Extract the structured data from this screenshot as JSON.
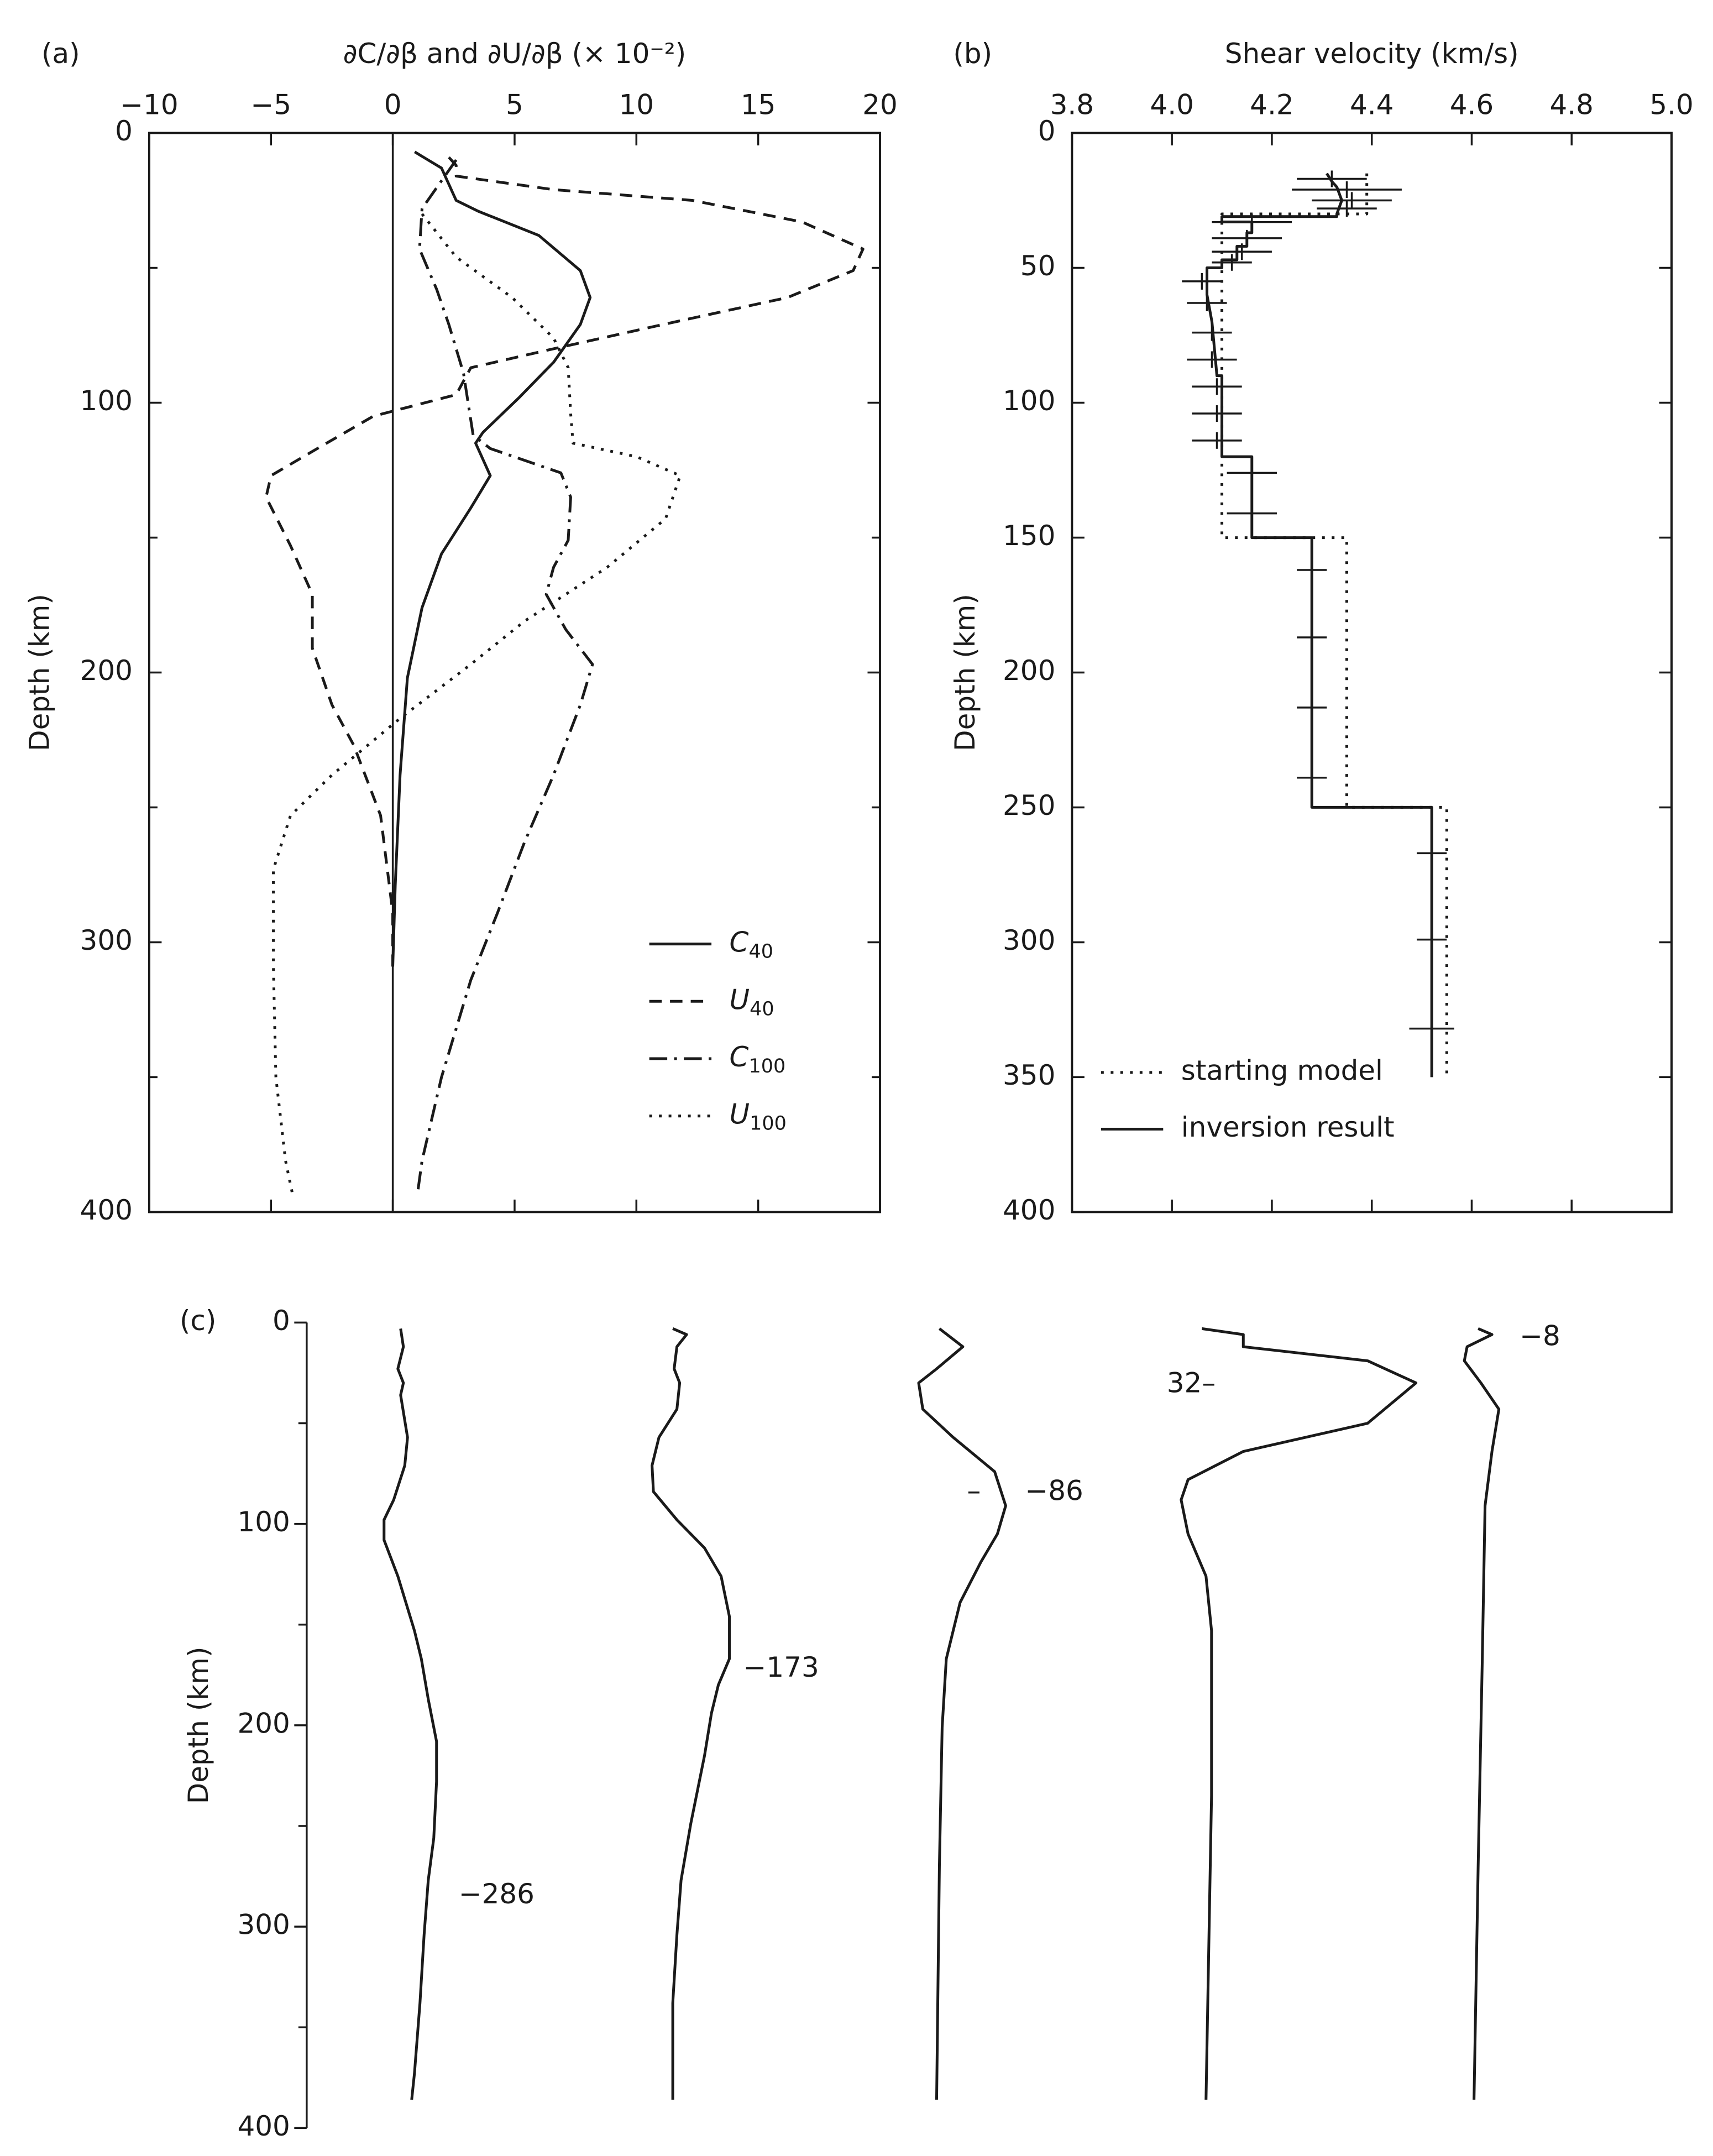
{
  "chart_data": [
    {
      "type": "line",
      "panel": "(a)",
      "title": "∂C/∂β and ∂U/∂β (× 10⁻²)",
      "ylabel": "Depth (km)",
      "xlim": [
        -10,
        20
      ],
      "xticks": [
        {
          "value": -10,
          "label": "−10"
        },
        {
          "value": -5,
          "label": "−5"
        },
        0,
        5,
        10,
        15,
        20
      ],
      "ylim": [
        0,
        400
      ],
      "yticks": [
        0,
        100,
        200,
        300,
        400
      ],
      "yminorticks": [
        50,
        150,
        250,
        350
      ],
      "invert_y": true,
      "vline": 0,
      "legend": "lower right",
      "series": [
        {
          "name": "C40",
          "color": "#1a1a1a",
          "style": "solid",
          "depth": [
            7,
            13,
            25,
            29,
            38,
            51,
            61,
            71,
            85,
            98,
            111,
            115,
            127,
            139,
            156,
            176,
            202,
            238,
            279,
            309
          ],
          "values": [
            0.9,
            2.0,
            2.6,
            3.5,
            6.0,
            7.7,
            8.1,
            7.7,
            6.6,
            5.2,
            3.7,
            3.4,
            4.0,
            3.2,
            2.0,
            1.2,
            0.6,
            0.3,
            0.1,
            0
          ]
        },
        {
          "name": "U40",
          "color": "#1a1a1a",
          "style": "dashed",
          "depth": [
            9,
            12,
            16,
            21,
            25,
            33,
            43,
            51,
            61,
            71,
            80,
            87,
            97,
            105,
            117,
            127,
            135,
            153,
            171,
            191,
            212,
            227,
            253,
            289,
            309
          ],
          "values": [
            2.3,
            2.6,
            2.6,
            6.6,
            12.3,
            16.8,
            19.3,
            18.9,
            16.2,
            11.1,
            6.6,
            3.2,
            2.6,
            -0.8,
            -3.1,
            -5.0,
            -5.2,
            -4.2,
            -3.3,
            -3.3,
            -2.5,
            -1.6,
            -0.5,
            0,
            0
          ]
        },
        {
          "name": "C100",
          "color": "#1a1a1a",
          "style": "dashdot",
          "depth": [
            10,
            28,
            43,
            58,
            71,
            89,
            112,
            117,
            126,
            135,
            151,
            161,
            171,
            184,
            197,
            212,
            238,
            263,
            289,
            314,
            350,
            381,
            394
          ],
          "values": [
            2.6,
            1.2,
            1.1,
            1.8,
            2.3,
            2.9,
            3.3,
            4.0,
            6.9,
            7.3,
            7.2,
            6.6,
            6.3,
            7.1,
            8.2,
            7.7,
            6.6,
            5.4,
            4.3,
            3.2,
            2.0,
            1.2,
            1.0
          ]
        },
        {
          "name": "U100",
          "color": "#1a1a1a",
          "style": "dotted",
          "depth": [
            30,
            46,
            61,
            76,
            87,
            104,
            115,
            120,
            127,
            143,
            161,
            181,
            197,
            217,
            238,
            253,
            273,
            309,
            350,
            381,
            394
          ],
          "values": [
            1.2,
            2.6,
            4.9,
            6.6,
            7.2,
            7.3,
            7.4,
            10.0,
            11.8,
            11.2,
            8.8,
            5.4,
            3.2,
            0.3,
            -2.5,
            -4.2,
            -4.9,
            -4.9,
            -4.8,
            -4.4,
            -4.1
          ]
        }
      ]
    },
    {
      "type": "line",
      "panel": "(b)",
      "title": "Shear velocity (km/s)",
      "ylabel": "Depth (km)",
      "xlim": [
        3.8,
        5.0
      ],
      "xticks": [
        3.8,
        {
          "value": 4,
          "label": "4.0"
        },
        4.2,
        4.4,
        4.6,
        4.8,
        {
          "value": 5,
          "label": "5.0"
        }
      ],
      "ylim": [
        0,
        400
      ],
      "yticks": [
        0,
        50,
        100,
        150,
        200,
        250,
        300,
        350,
        400
      ],
      "invert_y": true,
      "legend": "lower left",
      "series": [
        {
          "name": "starting model",
          "color": "#1a1a1a",
          "style": "dotted",
          "depth": [
            15,
            30,
            30,
            150,
            150,
            250,
            250,
            350
          ],
          "values": [
            4.39,
            4.39,
            4.1,
            4.1,
            4.35,
            4.35,
            4.55,
            4.55
          ]
        },
        {
          "name": "inversion result",
          "color": "#1a1a1a",
          "style": "solid",
          "depth": [
            15,
            18,
            20,
            25,
            30,
            31,
            31,
            33,
            33,
            37,
            37,
            42,
            42,
            47,
            47,
            50,
            50,
            60,
            70,
            90,
            90,
            120,
            120,
            150,
            150,
            250,
            250,
            350
          ],
          "values": [
            4.31,
            4.32,
            4.33,
            4.34,
            4.33,
            4.33,
            4.1,
            4.1,
            4.16,
            4.16,
            4.15,
            4.15,
            4.13,
            4.13,
            4.1,
            4.1,
            4.07,
            4.07,
            4.08,
            4.09,
            4.1,
            4.1,
            4.16,
            4.16,
            4.28,
            4.28,
            4.52,
            4.52
          ]
        }
      ],
      "error_bars": {
        "depth": [
          17,
          21,
          25,
          28,
          33,
          39,
          44,
          48,
          55,
          63,
          74,
          84,
          94,
          104,
          114,
          126,
          141,
          162,
          187,
          213,
          239,
          267,
          299,
          332
        ],
        "values": [
          4.32,
          4.35,
          4.36,
          4.35,
          4.16,
          4.15,
          4.14,
          4.12,
          4.06,
          4.07,
          4.08,
          4.08,
          4.09,
          4.09,
          4.09,
          4.16,
          4.16,
          4.28,
          4.28,
          4.28,
          4.28,
          4.52,
          4.52,
          4.52
        ],
        "errors": [
          0.07,
          0.11,
          0.08,
          0.06,
          0.08,
          0.07,
          0.06,
          0.04,
          0.04,
          0.04,
          0.04,
          0.05,
          0.05,
          0.05,
          0.05,
          0.05,
          0.05,
          0.03,
          0.03,
          0.03,
          0.03,
          0.03,
          0.03,
          0.045
        ]
      }
    },
    {
      "type": "traces",
      "panel": "(c)",
      "ylabel": "Depth (km)",
      "ylim": [
        0,
        400
      ],
      "yticks": [
        0,
        100,
        200,
        300,
        400
      ],
      "yminorticks": [
        50,
        150,
        250,
        350
      ],
      "invert_y": true,
      "series": [
        {
          "label": "−286",
          "depth": [
            3,
            12,
            23,
            30,
            36,
            57,
            71,
            88,
            98,
            108,
            126,
            153,
            167,
            187,
            208,
            228,
            256,
            277,
            304,
            338,
            373,
            386
          ],
          "values": [
            0,
            2,
            -2,
            2,
            0,
            5,
            3,
            -5,
            -12,
            -12,
            -2,
            10,
            15,
            20,
            26,
            26,
            24,
            20,
            17,
            14,
            10,
            8
          ]
        },
        {
          "label": "−173",
          "depth": [
            3,
            6,
            12,
            23,
            30,
            43,
            57,
            71,
            84,
            98,
            112,
            126,
            146,
            167,
            180,
            194,
            215,
            249,
            277,
            304,
            338,
            386
          ],
          "values": [
            0,
            10,
            3,
            1,
            5,
            3,
            -10,
            -15,
            -14,
            3,
            23,
            35,
            41,
            41,
            33,
            28,
            23,
            13,
            6,
            3,
            0,
            0
          ]
        },
        {
          "label": "−86",
          "mark": "–",
          "depth": [
            3,
            12,
            23,
            30,
            43,
            57,
            74,
            91,
            105,
            119,
            139,
            167,
            201,
            270,
            386
          ],
          "values": [
            0,
            17,
            -2,
            -15,
            -12,
            10,
            40,
            48,
            42,
            30,
            15,
            5,
            2,
            0,
            -2
          ]
        },
        {
          "label": "32–",
          "depth": [
            3,
            6,
            12,
            19,
            30,
            50,
            64,
            78,
            88,
            105,
            126,
            153,
            235,
            386
          ],
          "values": [
            -5,
            25,
            25,
            115,
            150,
            115,
            25,
            -15,
            -20,
            -15,
            -2,
            2,
            2,
            -2
          ]
        },
        {
          "label": "−8",
          "depth": [
            3,
            6,
            12,
            19,
            30,
            43,
            64,
            91,
            167,
            270,
            386
          ],
          "values": [
            0,
            10,
            -8,
            -10,
            2,
            15,
            10,
            5,
            3,
            0,
            -3
          ]
        }
      ]
    }
  ]
}
